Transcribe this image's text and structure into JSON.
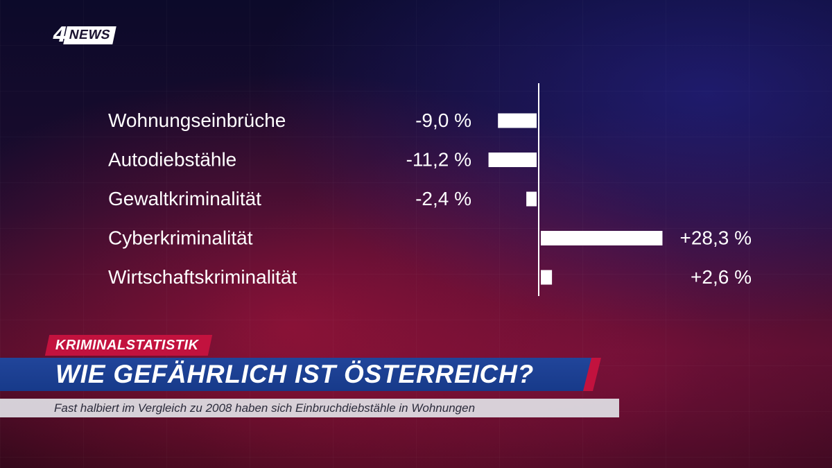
{
  "brand": {
    "logo_number": "4",
    "logo_text": "NEWS"
  },
  "lower_third": {
    "kicker": "KRIMINALSTATISTIK",
    "headline": "WIE GEFÄHRLICH IST ÖSTERREICH?",
    "subline": "Fast halbiert im Vergleich zu 2008 haben sich Einbruchdiebstähle in Wohnungen"
  },
  "chart_data": {
    "type": "bar",
    "orientation": "horizontal",
    "categories": [
      "Wohnungseinbrüche",
      "Autodiebstähle",
      "Gewaltkriminalität",
      "Cyberkriminalität",
      "Wirtschaftskriminalität"
    ],
    "values": [
      -9.0,
      -11.2,
      -2.4,
      28.3,
      2.6
    ],
    "value_labels": [
      "-9,0 %",
      "-11,2 %",
      "-2,4 %",
      "+28,3 %",
      "+2,6 %"
    ],
    "unit": "%",
    "bar_color": "#ffffff",
    "title": "",
    "xlabel": "",
    "ylabel": ""
  }
}
